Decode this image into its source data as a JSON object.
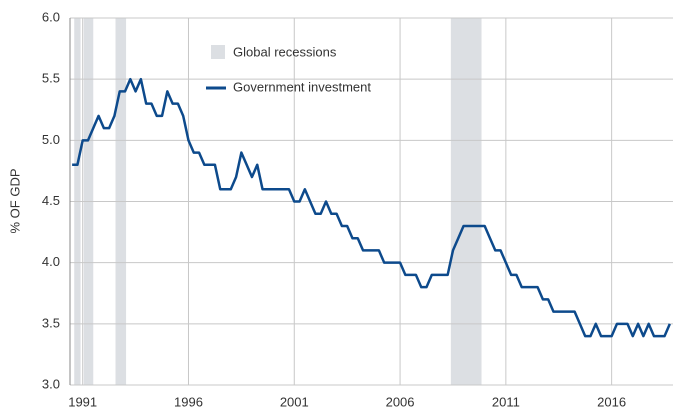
{
  "chart_data": {
    "type": "line",
    "y_label": "% OF GDP",
    "x": [
      1990.5,
      1990.75,
      1991,
      1991.25,
      1991.5,
      1991.75,
      1992,
      1992.25,
      1992.5,
      1992.75,
      1993,
      1993.25,
      1993.5,
      1993.75,
      1994,
      1994.25,
      1994.5,
      1994.75,
      1995,
      1995.25,
      1995.5,
      1995.75,
      1996,
      1996.25,
      1996.5,
      1996.75,
      1997.25,
      1997.5,
      1998,
      1998.25,
      1998.5,
      1998.75,
      1999,
      1999.25,
      1999.5,
      2000.75,
      2001,
      2001.25,
      2001.5,
      2001.75,
      2002,
      2002.25,
      2002.5,
      2002.75,
      2003,
      2003.25,
      2003.5,
      2003.75,
      2004,
      2004.25,
      2005,
      2005.25,
      2006,
      2006.25,
      2006.75,
      2007,
      2007.25,
      2007.5,
      2008.25,
      2008.5,
      2008.75,
      2009,
      2010,
      2010.25,
      2010.5,
      2010.75,
      2011,
      2011.25,
      2011.5,
      2011.75,
      2012.5,
      2012.75,
      2013,
      2013.25,
      2014.25,
      2014.5,
      2014.75,
      2015,
      2015.25,
      2015.5,
      2016,
      2016.25,
      2016.75,
      2017,
      2017.25,
      2017.5,
      2017.75,
      2018,
      2018.5,
      2018.75
    ],
    "series": [
      {
        "name": "Government investment",
        "color": "#0d4a8c",
        "values": [
          4.8,
          4.8,
          5.0,
          5.0,
          5.1,
          5.2,
          5.1,
          5.1,
          5.2,
          5.4,
          5.4,
          5.5,
          5.4,
          5.5,
          5.3,
          5.3,
          5.2,
          5.2,
          5.4,
          5.3,
          5.3,
          5.2,
          5.0,
          4.9,
          4.9,
          4.8,
          4.8,
          4.6,
          4.6,
          4.7,
          4.9,
          4.8,
          4.7,
          4.8,
          4.6,
          4.6,
          4.5,
          4.5,
          4.6,
          4.5,
          4.4,
          4.4,
          4.5,
          4.4,
          4.4,
          4.3,
          4.3,
          4.2,
          4.2,
          4.1,
          4.1,
          4.0,
          4.0,
          3.9,
          3.9,
          3.8,
          3.8,
          3.9,
          3.9,
          4.1,
          4.2,
          4.3,
          4.3,
          4.2,
          4.1,
          4.1,
          4.0,
          3.9,
          3.9,
          3.8,
          3.8,
          3.7,
          3.7,
          3.6,
          3.6,
          3.5,
          3.4,
          3.4,
          3.5,
          3.4,
          3.4,
          3.5,
          3.5,
          3.4,
          3.5,
          3.4,
          3.5,
          3.4,
          3.4,
          3.5
        ]
      }
    ],
    "recessions": {
      "name": "Global recessions",
      "color": "#dcdfe3",
      "ranges": [
        [
          1990.6,
          1990.9
        ],
        [
          1991.05,
          1991.5
        ],
        [
          1992.55,
          1993.05
        ],
        [
          2008.4,
          2009.85
        ]
      ]
    },
    "xlim": [
      1990.4,
      2018.9
    ],
    "xticks": [
      1991,
      1996,
      2001,
      2006,
      2011,
      2016
    ],
    "ylim": [
      3,
      6
    ],
    "yticks": [
      {
        "value": 3,
        "label": "3.0"
      },
      {
        "value": 3.5,
        "label": "3.5"
      },
      {
        "value": 4,
        "label": "4.0"
      },
      {
        "value": 4.5,
        "label": "4.5"
      },
      {
        "value": 5,
        "label": "5.0"
      },
      {
        "value": 5.5,
        "label": "5.5"
      },
      {
        "value": 6,
        "label": "6.0"
      }
    ],
    "grid": true
  }
}
